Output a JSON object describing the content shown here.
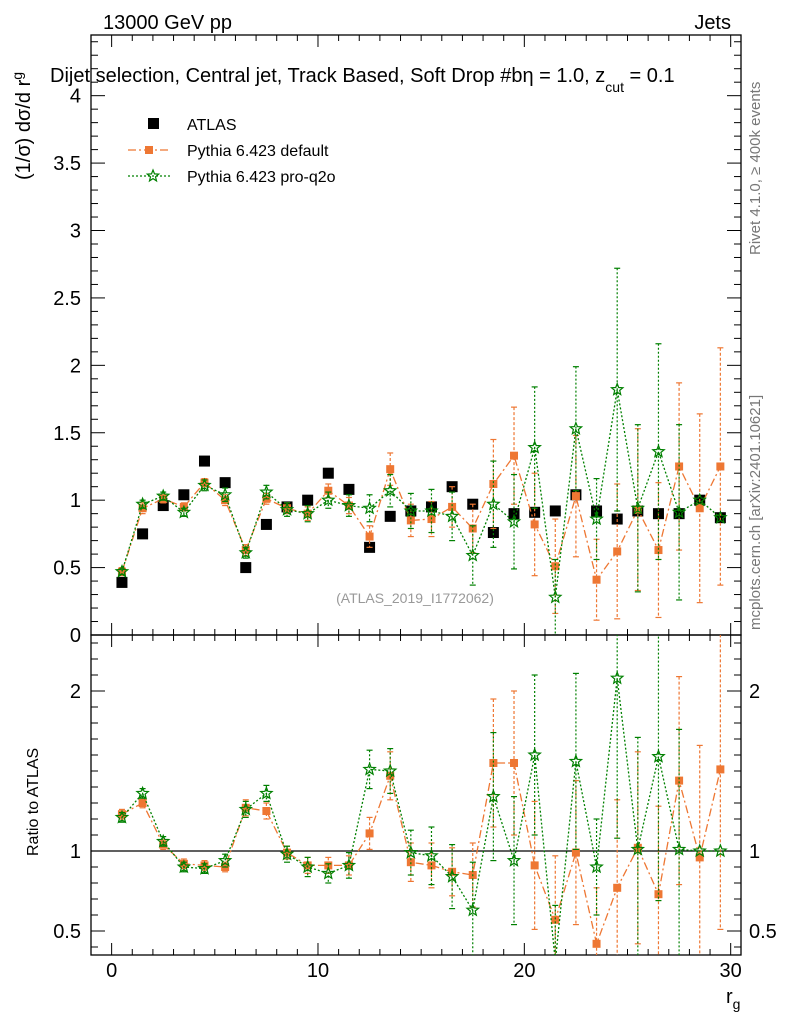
{
  "header": {
    "left": "13000 GeV pp",
    "right": "Jets",
    "title": "Dijet selection, Central jet, Track Based, Soft Drop #b",
    "title_tail": "η = 1.0, z",
    "title_sub": "cut",
    "title_end": " = 0.1"
  },
  "side": {
    "rivet": "Rivet 4.1.0, ≥ 400k events",
    "mcplots": "mcplots.cern.ch [arXiv:2401.10621]"
  },
  "watermark": "(ATLAS_2019_I1772062)",
  "colors": {
    "atlas": "#000000",
    "pythia_default": "#ee7733",
    "pythia_proq2o": "#008000"
  },
  "chart_data": [
    {
      "type": "scatter",
      "panel": "main",
      "ylabel": "(1/σ) dσ/d r",
      "ylabel_sub": "g",
      "xlim": [
        -1,
        30.5
      ],
      "ylim": [
        0,
        4.45
      ],
      "yticks": [
        0,
        0.5,
        1,
        1.5,
        2,
        2.5,
        3,
        3.5,
        4
      ],
      "ytick_labels": [
        "0",
        "0.5",
        "1",
        "1.5",
        "2",
        "2.5",
        "3",
        "3.5",
        "4"
      ],
      "x": [
        0.5,
        1.5,
        2.5,
        3.5,
        4.5,
        5.5,
        6.5,
        7.5,
        8.5,
        9.5,
        10.5,
        11.5,
        12.5,
        13.5,
        14.5,
        15.5,
        16.5,
        17.5,
        18.5,
        19.5,
        20.5,
        21.5,
        22.5,
        23.5,
        24.5,
        25.5,
        26.5,
        27.5,
        28.5,
        29.5
      ],
      "legend": [
        "ATLAS",
        "Pythia 6.423 default",
        "Pythia 6.423 pro-q2o"
      ],
      "series": [
        {
          "name": "ATLAS",
          "values": [
            0.39,
            0.75,
            0.96,
            1.04,
            1.29,
            1.13,
            0.5,
            0.82,
            0.95,
            1.0,
            1.2,
            1.08,
            0.65,
            0.88,
            0.92,
            0.95,
            1.1,
            0.97,
            0.76,
            0.9,
            0.91,
            0.92,
            1.04,
            0.92,
            0.86,
            0.92,
            0.9,
            0.9,
            1.0,
            0.87
          ],
          "errors": [
            0,
            0,
            0,
            0,
            0,
            0,
            0,
            0,
            0,
            0,
            0,
            0,
            0,
            0,
            0,
            0,
            0,
            0,
            0,
            0,
            0,
            0,
            0,
            0,
            0,
            0,
            0,
            0,
            0,
            0
          ]
        },
        {
          "name": "Pythia 6.423 default",
          "values": [
            0.47,
            0.94,
            1.01,
            0.95,
            1.13,
            1.0,
            0.63,
            1.01,
            0.94,
            0.9,
            1.07,
            0.96,
            0.73,
            1.23,
            0.85,
            0.86,
            0.95,
            0.79,
            1.12,
            1.33,
            0.82,
            0.51,
            1.03,
            0.41,
            0.62,
            0.93,
            0.63,
            1.25,
            0.94,
            1.25
          ],
          "errors": [
            0.03,
            0.04,
            0.03,
            0.03,
            0.03,
            0.04,
            0.04,
            0.04,
            0.04,
            0.05,
            0.05,
            0.06,
            0.08,
            0.12,
            0.12,
            0.13,
            0.15,
            0.18,
            0.33,
            0.36,
            0.38,
            0.35,
            0.45,
            0.3,
            0.5,
            0.6,
            0.5,
            0.62,
            0.7,
            0.88
          ]
        },
        {
          "name": "Pythia 6.423 pro-q2o",
          "values": [
            0.47,
            0.97,
            1.03,
            0.91,
            1.11,
            1.04,
            0.61,
            1.06,
            0.93,
            0.9,
            1.0,
            0.96,
            0.94,
            1.07,
            0.92,
            0.92,
            0.88,
            0.59,
            0.97,
            0.84,
            1.39,
            0.28,
            1.53,
            0.86,
            1.82,
            0.94,
            1.36,
            0.91,
            1.0,
            0.87
          ],
          "errors": [
            0.02,
            0.03,
            0.03,
            0.03,
            0.04,
            0.05,
            0.04,
            0.05,
            0.05,
            0.06,
            0.06,
            0.08,
            0.1,
            0.12,
            0.13,
            0.16,
            0.18,
            0.22,
            0.32,
            0.35,
            0.45,
            0.28,
            0.46,
            0.3,
            0.9,
            0.62,
            0.8,
            0.65,
            0.0,
            0.0
          ]
        }
      ]
    },
    {
      "type": "scatter",
      "panel": "ratio",
      "ylabel": "Ratio to ATLAS",
      "xlabel": "r",
      "xlabel_sub": "g",
      "xlim": [
        -1,
        30.5
      ],
      "ylim": [
        0.35,
        2.35
      ],
      "xticks": [
        0,
        10,
        20,
        30
      ],
      "xtick_labels": [
        "0",
        "10",
        "20",
        "30"
      ],
      "yticks": [
        0.5,
        1,
        2
      ],
      "ytick_labels": [
        "0.5",
        "1",
        "2"
      ],
      "x": [
        0.5,
        1.5,
        2.5,
        3.5,
        4.5,
        5.5,
        6.5,
        7.5,
        8.5,
        9.5,
        10.5,
        11.5,
        12.5,
        13.5,
        14.5,
        15.5,
        16.5,
        17.5,
        18.5,
        19.5,
        20.5,
        21.5,
        22.5,
        23.5,
        24.5,
        25.5,
        26.5,
        27.5,
        28.5,
        29.5
      ],
      "series": [
        {
          "name": "Pythia 6.423 default",
          "values": [
            1.23,
            1.3,
            1.04,
            0.92,
            0.91,
            0.9,
            1.27,
            1.25,
            0.99,
            0.91,
            0.91,
            0.91,
            1.11,
            1.47,
            0.93,
            0.91,
            0.87,
            0.85,
            1.55,
            1.55,
            0.91,
            0.57,
            0.99,
            0.42,
            0.77,
            1.02,
            0.73,
            1.44,
            0.96,
            1.51
          ],
          "errors": [
            0.03,
            0.03,
            0.03,
            0.03,
            0.03,
            0.03,
            0.05,
            0.05,
            0.04,
            0.05,
            0.05,
            0.06,
            0.1,
            0.15,
            0.12,
            0.14,
            0.15,
            0.2,
            0.4,
            0.45,
            0.4,
            0.4,
            0.45,
            0.35,
            0.55,
            0.6,
            0.55,
            0.65,
            0.7,
            1.0
          ]
        },
        {
          "name": "Pythia 6.423 pro-q2o",
          "values": [
            1.21,
            1.36,
            1.06,
            0.9,
            0.89,
            0.94,
            1.26,
            1.36,
            0.98,
            0.9,
            0.86,
            0.91,
            1.51,
            1.5,
            0.99,
            0.97,
            0.84,
            0.63,
            1.34,
            0.94,
            1.6,
            0.31,
            1.56,
            0.9,
            2.08,
            1.01,
            1.59,
            1.01,
            1.0,
            1.0
          ],
          "errors": [
            0.03,
            0.03,
            0.03,
            0.03,
            0.03,
            0.04,
            0.05,
            0.05,
            0.05,
            0.06,
            0.06,
            0.08,
            0.12,
            0.14,
            0.14,
            0.18,
            0.2,
            0.3,
            0.4,
            0.4,
            0.5,
            0.35,
            0.55,
            0.3,
            1.0,
            0.7,
            0.9,
            0.75,
            0.0,
            0.0
          ]
        }
      ]
    }
  ]
}
